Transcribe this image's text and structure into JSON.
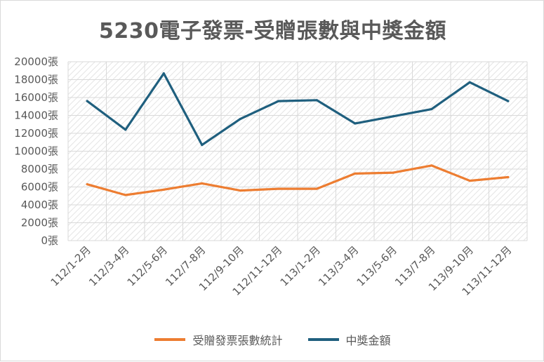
{
  "chart_data": {
    "type": "line",
    "title": "5230電子發票-受贈張數與中獎金額",
    "categories": [
      "112/1-2月",
      "112/3-4月",
      "112/5-6月",
      "112/7-8月",
      "112/9-10月",
      "112/11-12月",
      "113/1-2月",
      "113/3-4月",
      "113/5-6月",
      "113/7-8月",
      "113/9-10月",
      "113/11-12月"
    ],
    "ylim": [
      0,
      20000
    ],
    "y_ticks": [
      0,
      2000,
      4000,
      6000,
      8000,
      10000,
      12000,
      14000,
      16000,
      18000,
      20000
    ],
    "y_tick_labels": [
      "0張",
      "2000張",
      "4000張",
      "6000張",
      "8000張",
      "10000張",
      "12000張",
      "14000張",
      "16000張",
      "18000張",
      "20000張"
    ],
    "grid": true,
    "legend_position": "bottom",
    "series": [
      {
        "name": "受贈發票張數統計",
        "color": "#ED7D31",
        "values": [
          6300,
          5100,
          5700,
          6400,
          5600,
          5800,
          5800,
          7500,
          7600,
          8400,
          6700,
          7100
        ]
      },
      {
        "name": "中獎金額",
        "color": "#1F5F7E",
        "values": [
          15600,
          12400,
          18700,
          10700,
          13600,
          15600,
          15700,
          13100,
          13900,
          14700,
          17700,
          15600
        ]
      }
    ]
  }
}
